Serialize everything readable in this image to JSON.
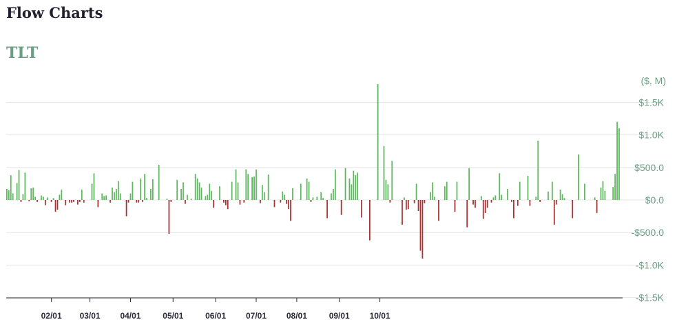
{
  "header": {
    "title": "Flow Charts",
    "ticker": "TLT"
  },
  "colors": {
    "positive": "#5cb85c",
    "negative": "#a83232",
    "ticker": "#6b9e83",
    "grid": "#e6e6e6",
    "axis": "#2b2b3a"
  },
  "chart_data": {
    "type": "bar",
    "unit_label": "($, M)",
    "ylim": [
      -1500,
      1800
    ],
    "yticks": [
      1500,
      1000,
      500,
      0,
      -500,
      -1000,
      -1500
    ],
    "ytick_labels": [
      "$1.5K",
      "$1.0K",
      "$500.0",
      "$0.0",
      "-$500.0",
      "-$1.0K",
      "-$1.5K"
    ],
    "xtick_labels": [
      "02/01",
      "03/01",
      "04/01",
      "05/01",
      "06/01",
      "07/01",
      "08/01",
      "09/01",
      "10/01"
    ],
    "xtick_positions": [
      22,
      41,
      61,
      82,
      103,
      123,
      143,
      164,
      184
    ],
    "grid": true,
    "values": [
      170,
      150,
      380,
      100,
      0,
      260,
      460,
      -30,
      90,
      420,
      0,
      -20,
      180,
      190,
      50,
      -30,
      0,
      70,
      50,
      -80,
      40,
      0,
      -30,
      30,
      -180,
      -150,
      80,
      160,
      0,
      -80,
      0,
      -40,
      -40,
      -30,
      0,
      -70,
      -30,
      160,
      -40,
      0,
      0,
      0,
      250,
      410,
      0,
      -110,
      0,
      100,
      60,
      70,
      0,
      -40,
      190,
      120,
      170,
      290,
      100,
      0,
      0,
      -250,
      -40,
      100,
      280,
      0,
      -40,
      -40,
      330,
      -30,
      400,
      30,
      0,
      170,
      320,
      0,
      0,
      540,
      0,
      0,
      0,
      20,
      -520,
      -30,
      0,
      0,
      310,
      0,
      170,
      270,
      -60,
      80,
      0,
      20,
      0,
      400,
      330,
      270,
      190,
      0,
      60,
      80,
      250,
      140,
      -120,
      0,
      0,
      210,
      0,
      -40,
      -80,
      -140,
      0,
      280,
      0,
      470,
      270,
      -70,
      0,
      -40,
      470,
      400,
      0,
      350,
      360,
      470,
      0,
      -50,
      230,
      120,
      0,
      390,
      0,
      0,
      -110,
      0,
      0,
      -40,
      130,
      80,
      -60,
      -140,
      -320,
      180,
      0,
      0,
      0,
      250,
      0,
      0,
      330,
      280,
      -30,
      40,
      0,
      50,
      0,
      120,
      30,
      0,
      -280,
      0,
      100,
      170,
      470,
      0,
      0,
      -230,
      0,
      490,
      0,
      330,
      240,
      450,
      380,
      420,
      0,
      -270,
      0,
      0,
      0,
      -620,
      0,
      0,
      0,
      1780,
      0,
      0,
      830,
      310,
      240,
      -40,
      600,
      0,
      0,
      0,
      0,
      -380,
      40,
      -150,
      -140,
      0,
      0,
      -50,
      250,
      -170,
      -780,
      -900,
      -50,
      0,
      0,
      120,
      270,
      50,
      0,
      -320,
      0,
      0,
      210,
      280,
      0,
      0,
      0,
      -180,
      280,
      0,
      0,
      0,
      0,
      -420,
      490,
      0,
      -70,
      -120,
      0,
      0,
      60,
      -290,
      -200,
      -120,
      0,
      -40,
      40,
      70,
      0,
      410,
      80,
      0,
      0,
      170,
      0,
      -30,
      -280,
      0,
      -90,
      280,
      0,
      0,
      0,
      370,
      -90,
      0,
      0,
      50,
      910,
      -30,
      0,
      0,
      0,
      130,
      0,
      280,
      -380,
      -70,
      0,
      160,
      90,
      30,
      0,
      0,
      0,
      -280,
      0,
      0,
      700,
      0,
      0,
      250,
      0,
      0,
      0,
      0,
      40,
      -200,
      0,
      190,
      290,
      140,
      0,
      0,
      0,
      200,
      400,
      1200,
      1100,
      0
    ]
  }
}
